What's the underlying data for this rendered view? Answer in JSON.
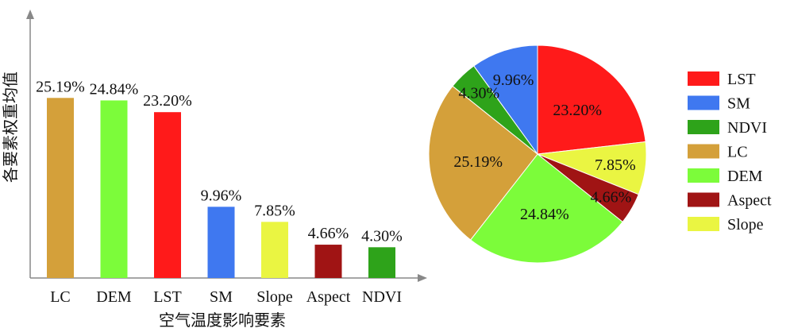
{
  "chart_data": [
    {
      "type": "bar",
      "xlabel": "空气温度影响要素",
      "ylabel": "各要素权重均值",
      "categories": [
        "LC",
        "DEM",
        "LST",
        "SM",
        "Slope",
        "Aspect",
        "NDVI"
      ],
      "values": [
        25.19,
        24.84,
        23.2,
        9.96,
        7.85,
        4.66,
        4.3
      ],
      "value_labels": [
        "25.19%",
        "24.84%",
        "23.20%",
        "9.96%",
        "7.85%",
        "4.66%",
        "4.30%"
      ],
      "colors": [
        "#D4A03A",
        "#7CFC3A",
        "#FF1A1A",
        "#3F78F0",
        "#EAF542",
        "#A01414",
        "#2EA31A"
      ],
      "ylim": [
        0,
        30
      ],
      "grid": false
    },
    {
      "type": "pie",
      "slices": [
        {
          "name": "LST",
          "value": 23.2,
          "label": "23.20%",
          "color": "#FF1A1A"
        },
        {
          "name": "Slope",
          "value": 7.85,
          "label": "7.85%",
          "color": "#EAF542"
        },
        {
          "name": "Aspect",
          "value": 4.66,
          "label": "4.66%",
          "color": "#A01414"
        },
        {
          "name": "DEM",
          "value": 24.84,
          "label": "24.84%",
          "color": "#7CFC3A"
        },
        {
          "name": "LC",
          "value": 25.19,
          "label": "25.19%",
          "color": "#D4A03A"
        },
        {
          "name": "NDVI",
          "value": 4.3,
          "label": "4.30%",
          "color": "#2EA31A"
        },
        {
          "name": "SM",
          "value": 9.96,
          "label": "9.96%",
          "color": "#3F78F0"
        }
      ],
      "legend": {
        "placement": "right",
        "entries": [
          {
            "name": "LST",
            "color": "#FF1A1A"
          },
          {
            "name": "SM",
            "color": "#3F78F0"
          },
          {
            "name": "NDVI",
            "color": "#2EA31A"
          },
          {
            "name": "LC",
            "color": "#D4A03A"
          },
          {
            "name": "DEM",
            "color": "#7CFC3A"
          },
          {
            "name": "Aspect",
            "color": "#A01414"
          },
          {
            "name": "Slope",
            "color": "#EAF542"
          }
        ]
      }
    }
  ]
}
